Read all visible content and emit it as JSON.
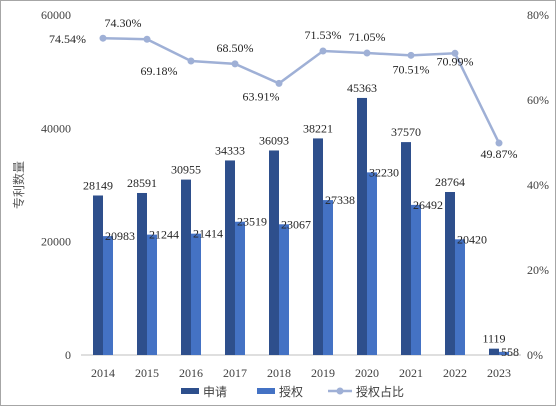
{
  "chart_data": {
    "type": "bar",
    "categories": [
      "2014",
      "2015",
      "2016",
      "2017",
      "2018",
      "2019",
      "2020",
      "2021",
      "2022",
      "2023"
    ],
    "series": [
      {
        "name": "申请",
        "values": [
          28149,
          28591,
          30955,
          34333,
          36093,
          38221,
          45363,
          37570,
          28764,
          1119
        ],
        "color": "#2e4f8c"
      },
      {
        "name": "授权",
        "values": [
          20983,
          21244,
          21414,
          23519,
          23067,
          27338,
          32230,
          26492,
          20420,
          558
        ],
        "color": "#4472c4"
      },
      {
        "name": "授权占比",
        "type": "line",
        "axis": "secondary",
        "values": [
          74.54,
          74.3,
          69.18,
          68.5,
          63.91,
          71.53,
          71.05,
          70.51,
          70.99,
          49.87
        ],
        "labels": [
          "74.54%",
          "74.30%",
          "69.18%",
          "68.50%",
          "63.91%",
          "71.53%",
          "71.05%",
          "70.51%",
          "70.99%",
          "49.87%"
        ],
        "color": "#9fb0d6"
      }
    ],
    "ylabel": "专利数量",
    "ylim": [
      0,
      60000
    ],
    "yticks": [
      "0",
      "20000",
      "40000",
      "60000"
    ],
    "y2lim": [
      0,
      80
    ],
    "y2ticks": [
      "0%",
      "20%",
      "40%",
      "60%",
      "80%"
    ],
    "legend_position": "bottom"
  }
}
